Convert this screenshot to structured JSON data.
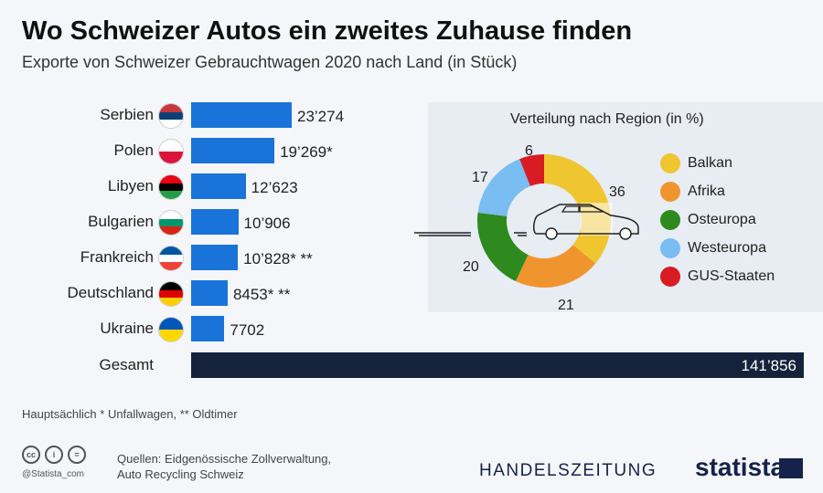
{
  "title": "Wo Schweizer Autos ein zweites Zuhause finden",
  "subtitle": "Exporte von Schweizer Gebrauchtwagen 2020 nach Land (in Stück)",
  "chart_data": [
    {
      "type": "bar",
      "orientation": "horizontal",
      "categories": [
        "Serbien",
        "Polen",
        "Libyen",
        "Bulgarien",
        "Frankreich",
        "Deutschland",
        "Ukraine"
      ],
      "values": [
        23274,
        19269,
        12623,
        10906,
        10828,
        8453,
        7702
      ],
      "labels": [
        "23’274",
        "19’269*",
        "12’623",
        "10’906",
        "10’828* **",
        "8453* **",
        "7702"
      ],
      "flags": [
        [
          "#c6363c",
          "#0c4076",
          "#ffffff"
        ],
        [
          "#ffffff",
          "#dc143c"
        ],
        [
          "#e70013",
          "#000000",
          "#239e46"
        ],
        [
          "#ffffff",
          "#00966e",
          "#d62612"
        ],
        [
          "#0055a4",
          "#ffffff",
          "#ef4135"
        ],
        [
          "#000000",
          "#dd0000",
          "#ffce00"
        ],
        [
          "#0057b7",
          "#ffd700"
        ]
      ],
      "total": {
        "label": "Gesamt",
        "value": 141856,
        "display": "141’856"
      },
      "color": "#1a73d9"
    },
    {
      "type": "pie",
      "donut": true,
      "title": "Verteilung nach Region (in %)",
      "categories": [
        "Balkan",
        "Afrika",
        "Osteuropa",
        "Westeuropa",
        "GUS-Staaten"
      ],
      "values": [
        36,
        21,
        20,
        17,
        6
      ],
      "colors": [
        "#efc630",
        "#f0952e",
        "#2e8a1e",
        "#79bdf2",
        "#d91c23"
      ]
    }
  ],
  "footnote": "Hauptsächlich * Unfallwagen, ** Oldtimer",
  "sources": [
    "Quellen: Eidgenössische Zollverwaltung,",
    "Auto Recycling Schweiz"
  ],
  "handle": "@Statista_com",
  "cc_icons": [
    "cc",
    "i",
    "="
  ],
  "brands": [
    "HANDELSZEITUNG",
    "statista"
  ]
}
